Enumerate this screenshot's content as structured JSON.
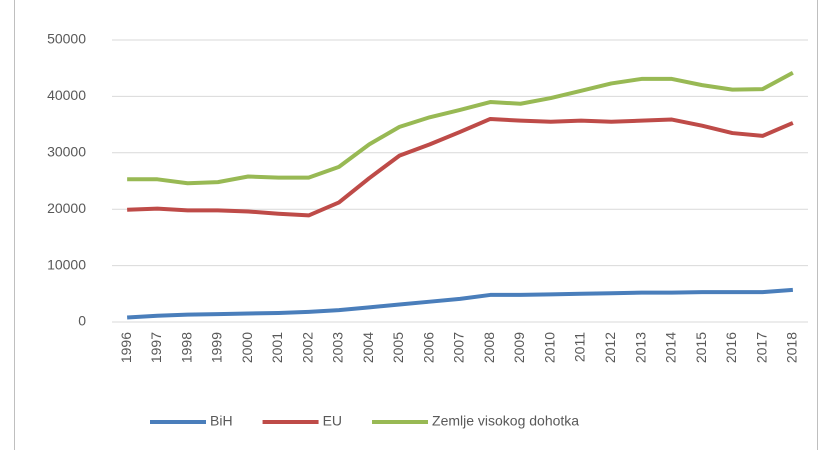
{
  "chart_data": {
    "type": "line",
    "categories": [
      "1996",
      "1997",
      "1998",
      "1999",
      "2000",
      "2001",
      "2002",
      "2003",
      "2004",
      "2005",
      "2006",
      "2007",
      "2008",
      "2009",
      "2010",
      "2011",
      "2012",
      "2013",
      "2014",
      "2015",
      "2016",
      "2017",
      "2018"
    ],
    "series": [
      {
        "name": "BiH",
        "color": "#4a7ebb",
        "values": [
          800,
          1100,
          1300,
          1400,
          1500,
          1600,
          1800,
          2100,
          2600,
          3100,
          3600,
          4100,
          4800,
          4800,
          4900,
          5000,
          5100,
          5200,
          5200,
          5300,
          5300,
          5300,
          5700
        ]
      },
      {
        "name": "EU",
        "color": "#be4b48",
        "values": [
          19900,
          20100,
          19800,
          19800,
          19600,
          19200,
          18900,
          21200,
          25500,
          29500,
          31500,
          33700,
          36000,
          35700,
          35500,
          35700,
          35500,
          35700,
          35900,
          34800,
          33500,
          33000,
          35300
        ]
      },
      {
        "name": "Zemlje visokog dohotka",
        "color": "#98b954",
        "values": [
          25300,
          25300,
          24600,
          24800,
          25800,
          25600,
          25600,
          27500,
          31500,
          34600,
          36300,
          37600,
          39000,
          38700,
          39700,
          41000,
          42300,
          43100,
          43100,
          42000,
          41200,
          41300,
          44200
        ]
      }
    ],
    "ylim": [
      0,
      50000
    ],
    "yticks": [
      0,
      10000,
      20000,
      30000,
      40000,
      50000
    ],
    "grid": true,
    "legend": "bottom"
  }
}
